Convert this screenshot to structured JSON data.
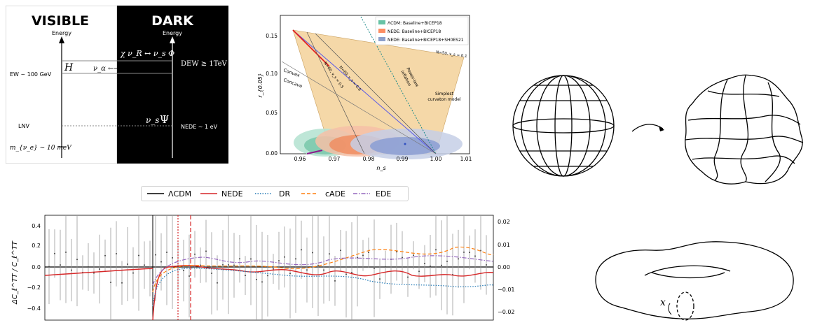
{
  "energy_diagram": {
    "visible_title": "VISIBLE",
    "dark_title": "DARK",
    "axis_label_visible": "Energy",
    "axis_label_dark": "Energy",
    "ew_label": "EW ~ 100 GeV",
    "lnv_label": "LNV",
    "mass_label": "m_{ν_e} ~ 10 meV",
    "h_label": "H",
    "nu_alpha_label": "ν_α ←→ ν_R",
    "chi_label": "χ  ν_R ↔ ν_s Φ",
    "dew_label": "DEW ≳ 1TeV",
    "nu_s_label": "ν_s",
    "psi_label": "Ψ",
    "nede_label": "NEDE ~ 1 eV",
    "colors": {
      "dark_bg": "#000000",
      "light_bg": "#ffffff"
    }
  },
  "constraint_plot": {
    "ylabel": "r_{0.05}",
    "xlabel": "n_s",
    "x_ticks": [
      "0.96",
      "0.97",
      "0.98",
      "0.99",
      "1.00",
      "1.01"
    ],
    "y_ticks": [
      "0.00",
      "0.05",
      "0.10",
      "0.15"
    ],
    "legend": [
      {
        "label": "ΛCDM: Baseline+BICEP18",
        "color": "#66c2a5"
      },
      {
        "label": "NEDE: Baseline+BICEP18",
        "color": "#fc8d62"
      },
      {
        "label": "NEDE: Baseline+BICEP18+SH0ES21",
        "color": "#8da0cb"
      }
    ],
    "annotations": {
      "convex": "Convex",
      "concave": "Concave",
      "simplest": "Simplest",
      "curvaton": "curvaton model",
      "power_law": "Power-law",
      "inflation": "inflation",
      "n50": "N=50, ν_s = 0.1",
      "n60a": "N=60, ν_s = 0.5",
      "n60b": "N=60, ν_s = 0.8"
    },
    "colors": {
      "region": "#f5d8a8",
      "red_line": "#e41a1c",
      "blue_line": "#4040e0",
      "teal_line": "#1b8a8a"
    }
  },
  "cmb_plot": {
    "legend": [
      {
        "label": "ΛCDM",
        "color": "#000000",
        "style": "solid"
      },
      {
        "label": "NEDE",
        "color": "#d62728",
        "style": "solid"
      },
      {
        "label": "DR",
        "color": "#1f77b4",
        "style": "dotted"
      },
      {
        "label": "cADE",
        "color": "#ff7f0e",
        "style": "dashed"
      },
      {
        "label": "EDE",
        "color": "#9467bd",
        "style": "dashdot"
      }
    ],
    "ylabel": "ΔC_ℓ^TT / C_ℓ^TT",
    "y_ticks_left": [
      "0.4",
      "0.2",
      "0.0",
      "−0.2",
      "−0.4"
    ],
    "y_ticks_right": [
      "0.02",
      "0.01",
      "0.00",
      "−0.01",
      "−0.02"
    ]
  }
}
